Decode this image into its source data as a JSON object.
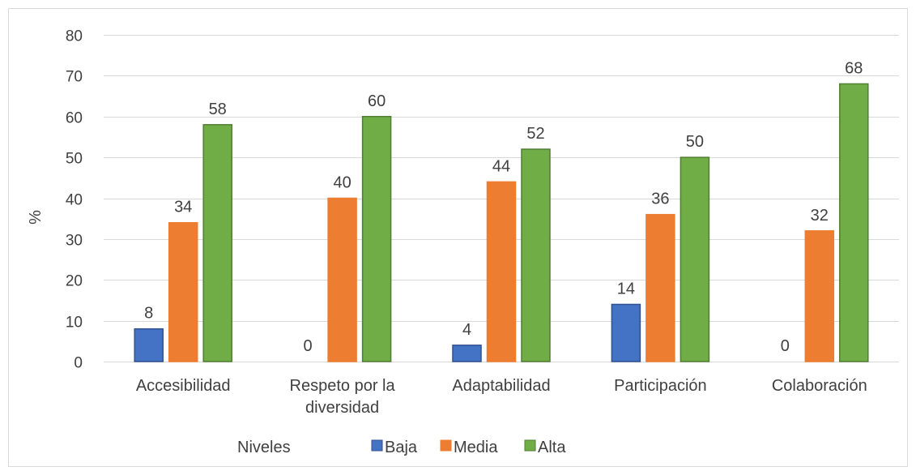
{
  "chart_data": {
    "type": "bar",
    "title": "",
    "xlabel": "",
    "ylabel": "%",
    "ylim": [
      0,
      80
    ],
    "yticks": [
      0,
      10,
      20,
      30,
      40,
      50,
      60,
      70,
      80
    ],
    "grid": true,
    "categories": [
      [
        "Accesibilidad"
      ],
      [
        "Respeto por la",
        "diversidad"
      ],
      [
        "Adaptabilidad"
      ],
      [
        "Participación"
      ],
      [
        "Colaboración"
      ]
    ],
    "series": [
      {
        "name": "Baja",
        "color": "#4472c4",
        "stroke": "#2f528f",
        "values": [
          8,
          0,
          4,
          14,
          0
        ]
      },
      {
        "name": "Media",
        "color": "#ed7d31",
        "stroke": "#ed7d31",
        "values": [
          34,
          40,
          44,
          36,
          32
        ]
      },
      {
        "name": "Alta",
        "color": "#70ad47",
        "stroke": "#507e32",
        "values": [
          58,
          60,
          52,
          50,
          68
        ]
      }
    ],
    "legend": {
      "title": "Niveles",
      "position": "bottom"
    }
  }
}
